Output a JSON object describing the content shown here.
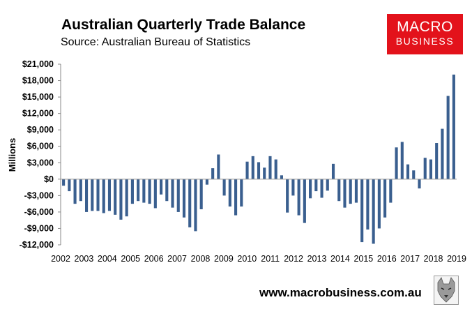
{
  "header": {
    "title": "Australian Quarterly Trade Balance",
    "subtitle": "Source: Australian Bureau of Statistics"
  },
  "logo": {
    "line1": "MACRO",
    "line2": "BUSINESS"
  },
  "footer": {
    "url": "www.macrobusiness.com.au"
  },
  "colors": {
    "bar": "#3a5f8f",
    "logo_bg": "#e3121b"
  },
  "chart_data": {
    "type": "bar",
    "title": "Australian Quarterly Trade Balance",
    "subtitle": "Source: Australian Bureau of Statistics",
    "ylabel": "Millions",
    "xlabel": "",
    "ylim": [
      -12000,
      21000
    ],
    "yticks": [
      21000,
      18000,
      15000,
      12000,
      9000,
      6000,
      3000,
      0,
      -3000,
      -6000,
      -9000,
      -12000
    ],
    "ytick_labels": [
      "$21,000",
      "$18,000",
      "$15,000",
      "$12,000",
      "$9,000",
      "$6,000",
      "$3,000",
      "$0",
      "-$3,000",
      "-$6,000",
      "-$9,000",
      "-$12,000"
    ],
    "xtick_labels": [
      "2002",
      "2003",
      "2004",
      "2005",
      "2006",
      "2007",
      "2008",
      "2009",
      "2010",
      "2011",
      "2012",
      "2013",
      "2014",
      "2015",
      "2016",
      "2017",
      "2018",
      "2019"
    ],
    "grid": false,
    "legend": "none",
    "series": [
      {
        "values": [
          -1200,
          -2200,
          -4500,
          -4000,
          -6000,
          -5800,
          -5800,
          -6200,
          -5800,
          -6500,
          -7400,
          -6800,
          -4500,
          -4000,
          -4300,
          -4500,
          -5300,
          -2800,
          -4000,
          -5200,
          -6000,
          -7000,
          -8800,
          -9500,
          -5500,
          -1000,
          2000,
          4500,
          -3000,
          -5000,
          -6600,
          -5000,
          3200,
          4200,
          3100,
          2100,
          4200,
          3600,
          700,
          -6100,
          -3000,
          -6600,
          -8000,
          -3500,
          -2200,
          -3400,
          -2100,
          2800,
          -4000,
          -5200,
          -4500,
          -4300,
          -11500,
          -9200,
          -11800,
          -9000,
          -7000,
          -4300,
          5800,
          6800,
          2700,
          1600,
          -1700,
          3900,
          3600,
          6600,
          9200,
          15200,
          19100
        ]
      }
    ]
  }
}
